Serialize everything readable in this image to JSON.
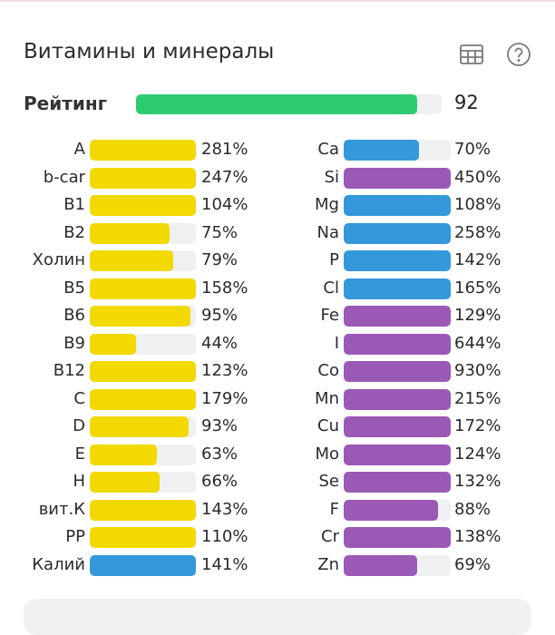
{
  "header": {
    "title": "Витамины и минералы",
    "icons": [
      "table-icon",
      "help-icon"
    ]
  },
  "rating": {
    "label": "Рейтинг",
    "value": "92",
    "percent": 92
  },
  "colors": {
    "yellow": "#f2d900",
    "blue": "#3498db",
    "purple": "#9b59b6",
    "green": "#2ecc71",
    "track": "#eef0f2"
  },
  "left": [
    {
      "name": "A",
      "pct": "281%",
      "value": 281,
      "color": "yellow"
    },
    {
      "name": "b-car",
      "pct": "247%",
      "value": 247,
      "color": "yellow"
    },
    {
      "name": "B1",
      "pct": "104%",
      "value": 104,
      "color": "yellow"
    },
    {
      "name": "B2",
      "pct": "75%",
      "value": 75,
      "color": "yellow"
    },
    {
      "name": "Холин",
      "pct": "79%",
      "value": 79,
      "color": "yellow"
    },
    {
      "name": "B5",
      "pct": "158%",
      "value": 158,
      "color": "yellow"
    },
    {
      "name": "B6",
      "pct": "95%",
      "value": 95,
      "color": "yellow"
    },
    {
      "name": "B9",
      "pct": "44%",
      "value": 44,
      "color": "yellow"
    },
    {
      "name": "B12",
      "pct": "123%",
      "value": 123,
      "color": "yellow"
    },
    {
      "name": "C",
      "pct": "179%",
      "value": 179,
      "color": "yellow"
    },
    {
      "name": "D",
      "pct": "93%",
      "value": 93,
      "color": "yellow"
    },
    {
      "name": "E",
      "pct": "63%",
      "value": 63,
      "color": "yellow"
    },
    {
      "name": "H",
      "pct": "66%",
      "value": 66,
      "color": "yellow"
    },
    {
      "name": "вит.К",
      "pct": "143%",
      "value": 143,
      "color": "yellow"
    },
    {
      "name": "PP",
      "pct": "110%",
      "value": 110,
      "color": "yellow"
    },
    {
      "name": "Калий",
      "pct": "141%",
      "value": 141,
      "color": "blue"
    }
  ],
  "right": [
    {
      "name": "Ca",
      "pct": "70%",
      "value": 70,
      "color": "blue"
    },
    {
      "name": "Si",
      "pct": "450%",
      "value": 450,
      "color": "purple"
    },
    {
      "name": "Mg",
      "pct": "108%",
      "value": 108,
      "color": "blue"
    },
    {
      "name": "Na",
      "pct": "258%",
      "value": 258,
      "color": "blue"
    },
    {
      "name": "P",
      "pct": "142%",
      "value": 142,
      "color": "blue"
    },
    {
      "name": "Cl",
      "pct": "165%",
      "value": 165,
      "color": "blue"
    },
    {
      "name": "Fe",
      "pct": "129%",
      "value": 129,
      "color": "purple"
    },
    {
      "name": "I",
      "pct": "644%",
      "value": 644,
      "color": "purple"
    },
    {
      "name": "Co",
      "pct": "930%",
      "value": 930,
      "color": "purple"
    },
    {
      "name": "Mn",
      "pct": "215%",
      "value": 215,
      "color": "purple"
    },
    {
      "name": "Cu",
      "pct": "172%",
      "value": 172,
      "color": "purple"
    },
    {
      "name": "Mo",
      "pct": "124%",
      "value": 124,
      "color": "purple"
    },
    {
      "name": "Se",
      "pct": "132%",
      "value": 132,
      "color": "purple"
    },
    {
      "name": "F",
      "pct": "88%",
      "value": 88,
      "color": "purple"
    },
    {
      "name": "Cr",
      "pct": "138%",
      "value": 138,
      "color": "purple"
    },
    {
      "name": "Zn",
      "pct": "69%",
      "value": 69,
      "color": "purple"
    }
  ]
}
